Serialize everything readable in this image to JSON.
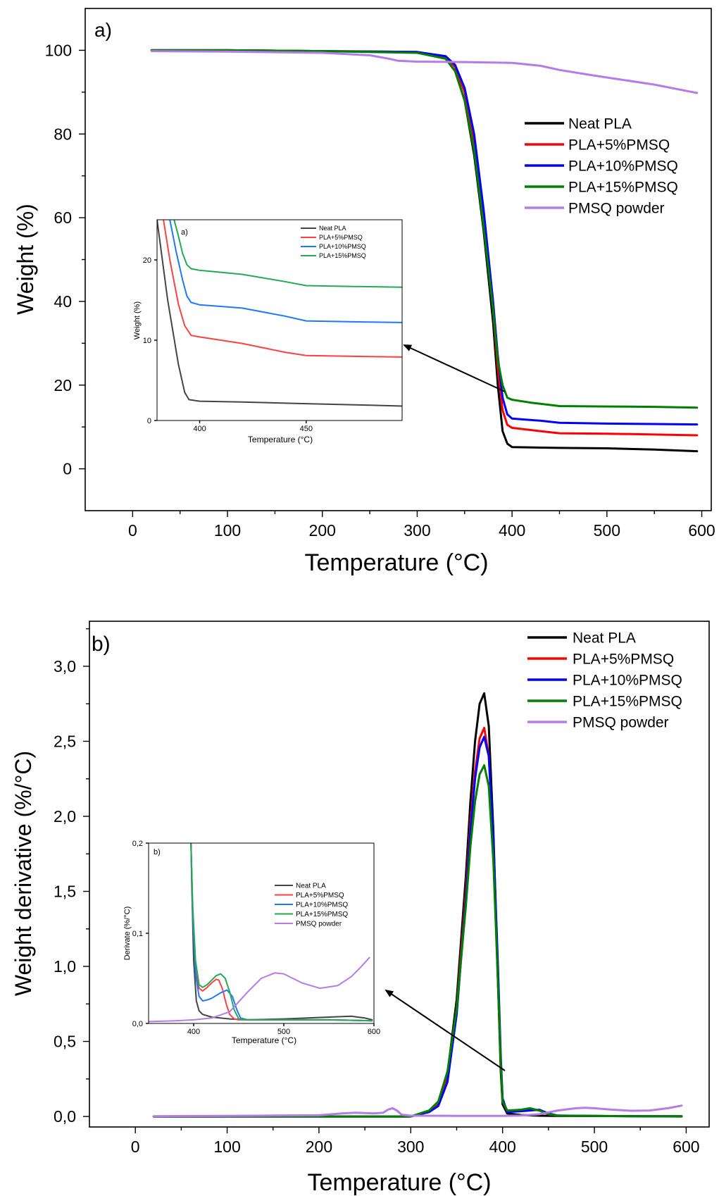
{
  "chart_data": [
    {
      "type": "line",
      "panel_label": "a)",
      "xlabel": "Temperature (°C)",
      "ylabel": "Weight (%)",
      "xlim": [
        -50,
        610
      ],
      "ylim": [
        -10,
        110
      ],
      "xticks": [
        0,
        100,
        200,
        300,
        400,
        500,
        600
      ],
      "yticks": [
        0,
        20,
        40,
        60,
        80,
        100
      ],
      "legend_position": "top-right",
      "series": [
        {
          "name": "Neat PLA",
          "color": "#000000",
          "x": [
            20,
            100,
            200,
            300,
            330,
            340,
            350,
            360,
            370,
            380,
            385,
            390,
            395,
            400,
            450,
            500,
            550,
            595
          ],
          "y": [
            100,
            100,
            99.8,
            99.5,
            98,
            95,
            88,
            75,
            57,
            35,
            20,
            9,
            6,
            5.2,
            5,
            4.9,
            4.6,
            4.2
          ]
        },
        {
          "name": "PLA+5%PMSQ",
          "color": "#ff0000",
          "x": [
            20,
            100,
            200,
            300,
            330,
            340,
            350,
            360,
            370,
            380,
            385,
            390,
            395,
            400,
            430,
            450,
            500,
            550,
            595
          ],
          "y": [
            100,
            100,
            99.8,
            99.6,
            98.5,
            96,
            90,
            78,
            60,
            38,
            24,
            14,
            10.5,
            9.8,
            9,
            8.5,
            8.4,
            8.2,
            8
          ]
        },
        {
          "name": "PLA+10%PMSQ",
          "color": "#0000ff",
          "x": [
            20,
            100,
            200,
            300,
            330,
            340,
            350,
            360,
            370,
            380,
            385,
            390,
            395,
            400,
            430,
            450,
            500,
            550,
            595
          ],
          "y": [
            100,
            100,
            99.8,
            99.6,
            98.6,
            96.5,
            91,
            80,
            62,
            40,
            27,
            17,
            13,
            12,
            11.5,
            11,
            10.8,
            10.7,
            10.6
          ]
        },
        {
          "name": "PLA+15%PMSQ",
          "color": "#008000",
          "x": [
            20,
            100,
            200,
            300,
            330,
            340,
            350,
            360,
            370,
            380,
            385,
            390,
            395,
            400,
            420,
            450,
            500,
            550,
            595
          ],
          "y": [
            100,
            100,
            99.8,
            99.4,
            98,
            95,
            88,
            76,
            58,
            38,
            26,
            20,
            17,
            16.5,
            15.8,
            15,
            14.9,
            14.8,
            14.6
          ]
        },
        {
          "name": "PMSQ powder",
          "color": "#b57bea",
          "x": [
            20,
            100,
            200,
            250,
            270,
            280,
            300,
            350,
            400,
            430,
            450,
            480,
            500,
            550,
            595
          ],
          "y": [
            99.8,
            99.7,
            99.4,
            98.8,
            98,
            97.5,
            97.3,
            97.2,
            97.0,
            96.3,
            95.3,
            94.2,
            93.5,
            91.8,
            89.8
          ]
        }
      ],
      "inset": {
        "panel_label": "a)",
        "xlabel": "Temperature (°C)",
        "ylabel": "Weight (%)",
        "xlim": [
          380,
          495
        ],
        "ylim": [
          0,
          25
        ],
        "xticks": [
          400,
          450
        ],
        "yticks": [
          0,
          10,
          20
        ],
        "legend_position": "top-right",
        "series": [
          {
            "name": "Neat PLA",
            "color": "#444444",
            "x": [
              380,
              385,
              390,
              393,
              395,
              400,
              420,
              450,
              480,
              495
            ],
            "y": [
              25,
              15,
              7,
              3.5,
              2.6,
              2.4,
              2.3,
              2.1,
              1.9,
              1.8
            ]
          },
          {
            "name": "PLA+5%PMSQ",
            "color": "#ff4040",
            "x": [
              383,
              386,
              390,
              393,
              396,
              400,
              420,
              440,
              450,
              470,
              495
            ],
            "y": [
              25,
              20,
              14.5,
              11.8,
              10.6,
              10.4,
              9.6,
              8.5,
              8.1,
              8.0,
              7.9
            ]
          },
          {
            "name": "PLA+10%PMSQ",
            "color": "#1e78ff",
            "x": [
              386,
              389,
              392,
              394,
              396,
              400,
              420,
              440,
              450,
              470,
              495
            ],
            "y": [
              25,
              21,
              17.5,
              15.5,
              14.7,
              14.4,
              14,
              13,
              12.4,
              12.3,
              12.2
            ]
          },
          {
            "name": "PLA+15%PMSQ",
            "color": "#22aa55",
            "x": [
              388,
              390,
              392,
              394,
              396,
              400,
              420,
              440,
              450,
              470,
              495
            ],
            "y": [
              25,
              23,
              20.8,
              19.4,
              18.9,
              18.7,
              18.2,
              17.3,
              16.8,
              16.7,
              16.6
            ]
          }
        ]
      }
    },
    {
      "type": "line",
      "panel_label": "b)",
      "xlabel": "Temperature (°C)",
      "ylabel": "Weight derivative (%/°C)",
      "xlim": [
        -50,
        625
      ],
      "ylim": [
        -0.07,
        3.3
      ],
      "xticks": [
        0,
        100,
        200,
        300,
        400,
        500,
        600
      ],
      "yticks": [
        0,
        0.5,
        1.0,
        1.5,
        2.0,
        2.5,
        3.0
      ],
      "ytick_labels": [
        "0,0",
        "0,5",
        "1,0",
        "1,5",
        "2,0",
        "2,5",
        "3,0"
      ],
      "legend_position": "top-right",
      "series": [
        {
          "name": "Neat PLA",
          "color": "#000000",
          "x": [
            20,
            300,
            320,
            330,
            340,
            350,
            360,
            365,
            370,
            375,
            380,
            385,
            390,
            395,
            398,
            400,
            405,
            420,
            440,
            460,
            500,
            550,
            595
          ],
          "y": [
            0,
            0,
            0.03,
            0.09,
            0.28,
            0.78,
            1.6,
            2.1,
            2.5,
            2.75,
            2.82,
            2.6,
            1.9,
            0.9,
            0.3,
            0.08,
            0.02,
            0.01,
            0.005,
            0.003,
            0.003,
            0.002,
            0
          ]
        },
        {
          "name": "PLA+5%PMSQ",
          "color": "#ff0000",
          "x": [
            20,
            300,
            320,
            330,
            340,
            350,
            360,
            365,
            370,
            375,
            380,
            385,
            390,
            395,
            398,
            400,
            405,
            420,
            430,
            440,
            450,
            460,
            500,
            550,
            595
          ],
          "y": [
            0,
            0,
            0.03,
            0.08,
            0.25,
            0.72,
            1.5,
            1.95,
            2.3,
            2.52,
            2.59,
            2.4,
            1.8,
            0.9,
            0.35,
            0.1,
            0.04,
            0.04,
            0.05,
            0.04,
            0.015,
            0.005,
            0.003,
            0.002,
            0.002
          ]
        },
        {
          "name": "PLA+10%PMSQ",
          "color": "#0000ff",
          "x": [
            20,
            300,
            320,
            330,
            340,
            350,
            360,
            365,
            370,
            375,
            380,
            385,
            390,
            395,
            398,
            400,
            405,
            420,
            430,
            440,
            450,
            460,
            500,
            550,
            595
          ],
          "y": [
            0,
            0,
            0.03,
            0.07,
            0.23,
            0.68,
            1.45,
            1.9,
            2.25,
            2.46,
            2.53,
            2.4,
            1.85,
            1.0,
            0.4,
            0.12,
            0.03,
            0.035,
            0.04,
            0.045,
            0.02,
            0.006,
            0.003,
            0.002,
            0.002
          ]
        },
        {
          "name": "PLA+15%PMSQ",
          "color": "#008000",
          "x": [
            20,
            300,
            320,
            330,
            340,
            350,
            360,
            365,
            370,
            375,
            380,
            385,
            390,
            395,
            398,
            400,
            405,
            420,
            430,
            440,
            450,
            460,
            500,
            550,
            595
          ],
          "y": [
            0,
            0,
            0.04,
            0.1,
            0.3,
            0.72,
            1.4,
            1.8,
            2.1,
            2.28,
            2.34,
            2.2,
            1.7,
            0.9,
            0.35,
            0.1,
            0.04,
            0.045,
            0.055,
            0.04,
            0.015,
            0.005,
            0.003,
            0.002,
            0.002
          ]
        },
        {
          "name": "PMSQ powder",
          "color": "#b57bea",
          "x": [
            20,
            100,
            150,
            200,
            225,
            240,
            260,
            270,
            275,
            280,
            285,
            290,
            300,
            350,
            400,
            420,
            440,
            460,
            480,
            490,
            500,
            520,
            540,
            560,
            580,
            595
          ],
          "y": [
            0.002,
            0.004,
            0.006,
            0.008,
            0.02,
            0.025,
            0.02,
            0.025,
            0.045,
            0.055,
            0.04,
            0.012,
            0.005,
            0.004,
            0.004,
            0.006,
            0.015,
            0.04,
            0.055,
            0.058,
            0.055,
            0.045,
            0.038,
            0.04,
            0.055,
            0.072
          ]
        }
      ],
      "inset": {
        "panel_label": "b)",
        "xlabel": "Temperature (°C)",
        "ylabel": "Derivate (%/°C)",
        "xlim": [
          350,
          600
        ],
        "ylim": [
          0,
          0.2
        ],
        "xticks": [
          400,
          500,
          600
        ],
        "yticks": [
          0,
          0.1,
          0.2
        ],
        "ytick_labels": [
          "0,0",
          "0,1",
          "0,2"
        ],
        "legend_position": "center-right",
        "series": [
          {
            "name": "Neat PLA",
            "color": "#444444",
            "x": [
              397,
              398,
              400,
              403,
              406,
              410,
              420,
              440,
              460,
              500,
              550,
              575,
              590,
              598
            ],
            "y": [
              0.2,
              0.15,
              0.07,
              0.025,
              0.014,
              0.01,
              0.007,
              0.005,
              0.004,
              0.005,
              0.007,
              0.008,
              0.006,
              0.004
            ]
          },
          {
            "name": "PLA+5%PMSQ",
            "color": "#ff4040",
            "x": [
              397,
              399,
              402,
              406,
              410,
              415,
              420,
              425,
              428,
              432,
              436,
              440,
              445,
              450,
              460,
              500,
              550,
              598
            ],
            "y": [
              0.2,
              0.12,
              0.06,
              0.039,
              0.036,
              0.04,
              0.045,
              0.049,
              0.048,
              0.038,
              0.022,
              0.01,
              0.005,
              0.004,
              0.004,
              0.004,
              0.004,
              0.003
            ]
          },
          {
            "name": "PLA+10%PMSQ",
            "color": "#1e78ff",
            "x": [
              397,
              399,
              402,
              406,
              410,
              415,
              420,
              430,
              437,
              443,
              448,
              452,
              460,
              500,
              550,
              598
            ],
            "y": [
              0.2,
              0.12,
              0.055,
              0.03,
              0.025,
              0.026,
              0.028,
              0.034,
              0.037,
              0.03,
              0.015,
              0.006,
              0.004,
              0.004,
              0.004,
              0.003
            ]
          },
          {
            "name": "PLA+15%PMSQ",
            "color": "#22aa55",
            "x": [
              397,
              399,
              402,
              406,
              410,
              415,
              420,
              425,
              430,
              435,
              440,
              445,
              450,
              460,
              500,
              550,
              598
            ],
            "y": [
              0.2,
              0.13,
              0.07,
              0.043,
              0.04,
              0.043,
              0.048,
              0.053,
              0.055,
              0.05,
              0.035,
              0.015,
              0.005,
              0.004,
              0.004,
              0.004,
              0.003
            ]
          },
          {
            "name": "PMSQ powder",
            "color": "#b57bea",
            "x": [
              350,
              380,
              400,
              420,
              440,
              460,
              475,
              490,
              500,
              520,
              540,
              560,
              575,
              585,
              595
            ],
            "y": [
              0.002,
              0.003,
              0.004,
              0.006,
              0.013,
              0.035,
              0.05,
              0.056,
              0.055,
              0.045,
              0.039,
              0.042,
              0.052,
              0.062,
              0.073
            ]
          }
        ]
      }
    }
  ]
}
